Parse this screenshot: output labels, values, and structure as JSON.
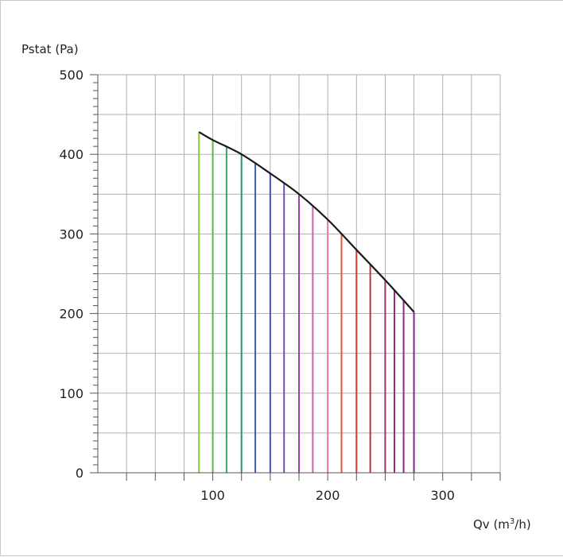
{
  "chart_data": {
    "type": "line",
    "title": "",
    "ylabel": "Pstat (Pa)",
    "xlabel": {
      "base": "Qv (m",
      "sup": "3",
      "tail": "/h)"
    },
    "xlim": [
      0,
      350
    ],
    "ylim": [
      0,
      500
    ],
    "x_ticks": [
      100,
      200,
      300
    ],
    "y_ticks": [
      0,
      100,
      200,
      300,
      400,
      500
    ],
    "x_grid_step": 25,
    "y_grid_step": 50,
    "y_minor_step": 10,
    "grid": true,
    "curve": {
      "color": "#1a1a1a",
      "points": [
        [
          88,
          428
        ],
        [
          100,
          418
        ],
        [
          125,
          400
        ],
        [
          150,
          376
        ],
        [
          175,
          350
        ],
        [
          200,
          318
        ],
        [
          225,
          280
        ],
        [
          250,
          242
        ],
        [
          275,
          202
        ]
      ]
    },
    "stems": [
      {
        "x": 88,
        "color": "#8cc63f"
      },
      {
        "x": 100,
        "color": "#5cb84a"
      },
      {
        "x": 112,
        "color": "#3aa860"
      },
      {
        "x": 125,
        "color": "#2a8f7a"
      },
      {
        "x": 137,
        "color": "#3a5fb0"
      },
      {
        "x": 150,
        "color": "#4a4fb8"
      },
      {
        "x": 162,
        "color": "#7a4ab8"
      },
      {
        "x": 175,
        "color": "#a040b0"
      },
      {
        "x": 187,
        "color": "#d060b0"
      },
      {
        "x": 200,
        "color": "#e8789a"
      },
      {
        "x": 212,
        "color": "#e05a3a"
      },
      {
        "x": 225,
        "color": "#d03a30"
      },
      {
        "x": 237,
        "color": "#b8304a"
      },
      {
        "x": 250,
        "color": "#a03070"
      },
      {
        "x": 258,
        "color": "#9a2a80"
      },
      {
        "x": 266,
        "color": "#8a2a8a"
      },
      {
        "x": 275,
        "color": "#7a2a8c"
      }
    ]
  }
}
